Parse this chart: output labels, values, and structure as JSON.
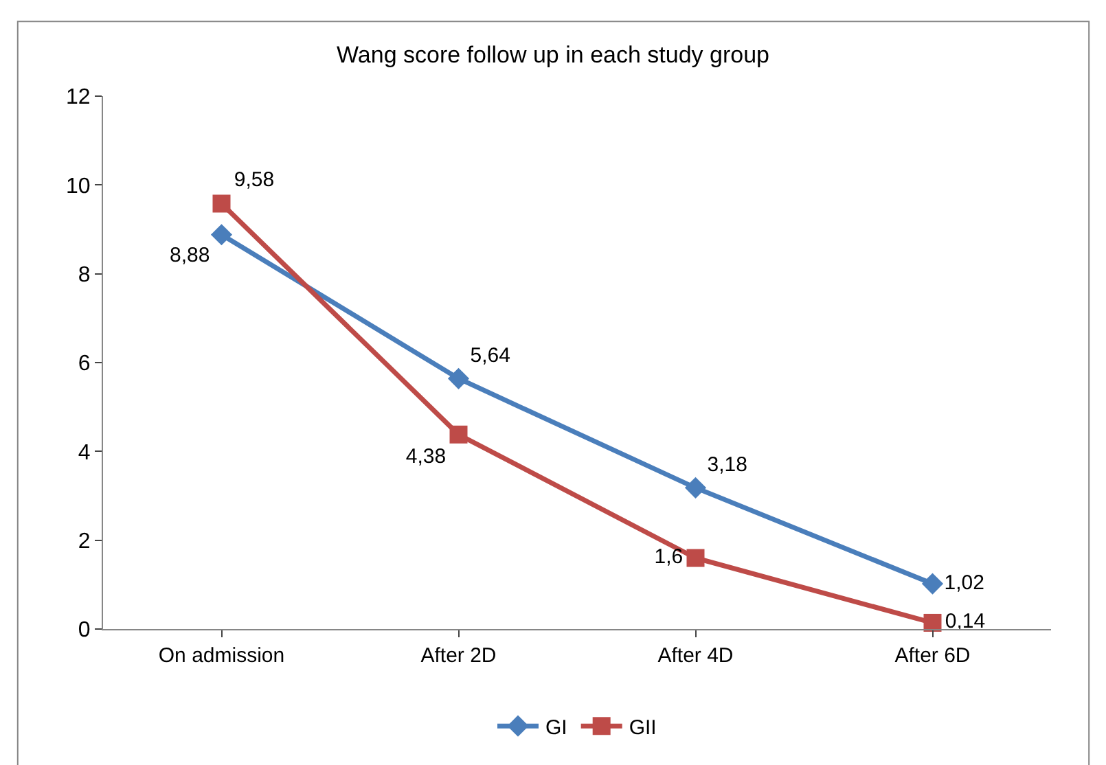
{
  "chart_data": {
    "type": "line",
    "title": "Wang score follow up in each study group",
    "categories": [
      "On admission",
      "After 2D",
      "After 4D",
      "After 6D"
    ],
    "series": [
      {
        "name": "GI",
        "color": "#4a7ebb",
        "marker": "diamond",
        "values": [
          8.88,
          5.64,
          3.18,
          1.02
        ],
        "value_labels": [
          "8,88",
          "5,64",
          "3,18",
          "1,02"
        ]
      },
      {
        "name": "GII",
        "color": "#be4b48",
        "marker": "square",
        "values": [
          9.58,
          4.38,
          1.6,
          0.14
        ],
        "value_labels": [
          "9,58",
          "4,38",
          "1,6",
          "0,14"
        ]
      }
    ],
    "ylim": [
      0,
      12
    ],
    "yticks": [
      0,
      2,
      4,
      6,
      8,
      10,
      12
    ],
    "grid": false,
    "legend": "bottom",
    "line_style": "solid"
  }
}
